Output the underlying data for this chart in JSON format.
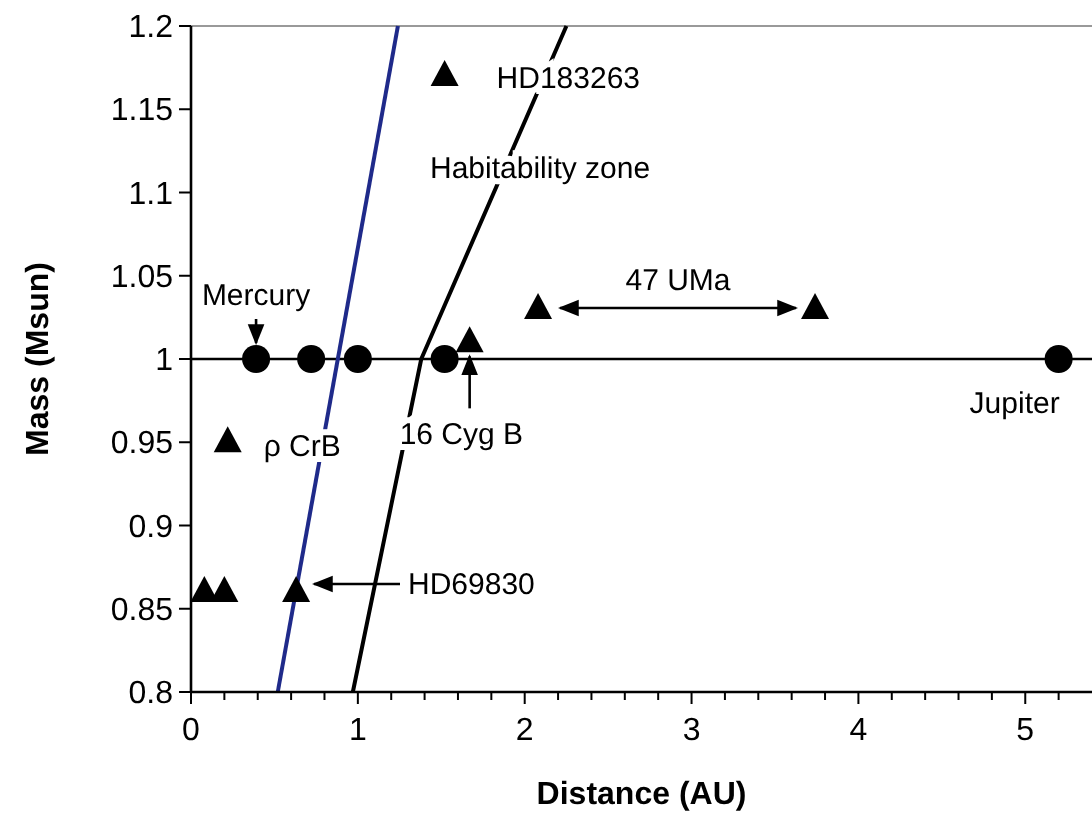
{
  "chart_data": {
    "type": "scatter",
    "xlabel": "Distance (AU)",
    "ylabel": "Mass (Msun)",
    "xlim": [
      0,
      5.4
    ],
    "ylim": [
      0.8,
      1.2
    ],
    "xticks": [
      0,
      {
        "value": 0.2,
        "label": null
      },
      {
        "value": 0.4,
        "label": null
      },
      {
        "value": 0.6,
        "label": null
      },
      {
        "value": 0.8,
        "label": null
      },
      1,
      {
        "value": 1.2,
        "label": null
      },
      {
        "value": 1.4,
        "label": null
      },
      {
        "value": 1.6,
        "label": null
      },
      {
        "value": 1.8,
        "label": null
      },
      2,
      {
        "value": 2.2,
        "label": null
      },
      {
        "value": 2.4,
        "label": null
      },
      {
        "value": 2.6,
        "label": null
      },
      {
        "value": 2.8,
        "label": null
      },
      3,
      {
        "value": 3.2,
        "label": null
      },
      {
        "value": 3.4,
        "label": null
      },
      {
        "value": 3.6,
        "label": null
      },
      {
        "value": 3.8,
        "label": null
      },
      4,
      {
        "value": 4.2,
        "label": null
      },
      {
        "value": 4.4,
        "label": null
      },
      {
        "value": 4.6,
        "label": null
      },
      {
        "value": 4.8,
        "label": null
      },
      5,
      {
        "value": 5.2,
        "label": null
      }
    ],
    "yticks": [
      0.8,
      0.85,
      0.9,
      0.95,
      1,
      1.05,
      1.1,
      1.15,
      1.2
    ],
    "grid": false,
    "series": [
      {
        "type": "line",
        "marker": "none",
        "color": "#1f2a8a",
        "x": [
          0.52,
          1.24
        ],
        "values": [
          0.8,
          1.2
        ]
      },
      {
        "type": "line",
        "marker": "none",
        "color": "#000000",
        "x": [
          0.97,
          1.38,
          2.25
        ],
        "values": [
          0.8,
          1.0,
          1.2
        ]
      },
      {
        "type": "scatter",
        "marker": "circle",
        "color": "#000000",
        "x": [
          0.39,
          0.72,
          1.0,
          1.52,
          5.2
        ],
        "values": [
          1,
          1,
          1,
          1,
          1
        ]
      },
      {
        "type": "scatter",
        "marker": "triangle",
        "color": "#000000",
        "x": [
          1.52,
          1.67,
          2.08,
          3.74,
          0.22,
          0.08,
          0.2,
          0.63
        ],
        "values": [
          1.17,
          1.01,
          1.03,
          1.03,
          0.95,
          0.86,
          0.86,
          0.86
        ]
      }
    ],
    "ref_lines": [
      {
        "axis": "y",
        "value": 1,
        "color": "#000000"
      }
    ],
    "annotations": [
      {
        "text": "Mercury",
        "x": 0.39,
        "y": 1
      },
      {
        "text": "HD183263",
        "x": 1.52,
        "y": 1.17
      },
      "Habitability zone",
      "47 UMa",
      {
        "text": "ρ CrB",
        "x": 0.22,
        "y": 0.95
      },
      {
        "text": "16 Cyg B",
        "x": 1.67,
        "y": 1.01
      },
      "HD69830",
      {
        "text": "Jupiter",
        "x": 5.2,
        "y": 1
      }
    ]
  }
}
